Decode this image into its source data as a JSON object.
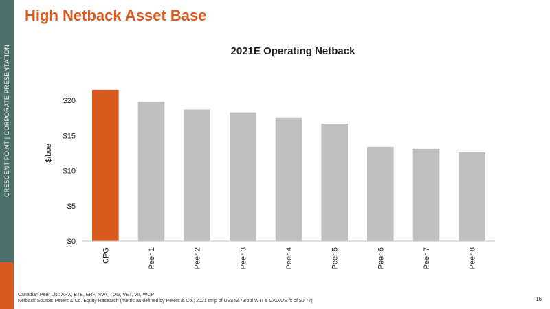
{
  "slide": {
    "title": "High Netback Asset Base",
    "sidebar_text": "CRESCENT POINT   |   CORPORATE PRESENTATION",
    "page_number": "16",
    "footnotes": [
      "Canadian Peer List: ARX, BTE, ERF, NVA, TOG, VET, VII, WCP",
      "Netback Source: Peters & Co. Equity Research (metric as defined by Peters & Co.; 2021 strip of US$43.73/bbl WTI & CAD/US fx of $0.77)"
    ],
    "colors": {
      "sidebar": "#4b6f69",
      "accent": "#d85a1f"
    }
  },
  "chart_data": {
    "type": "bar",
    "title": "2021E Operating Netback",
    "xlabel": "",
    "ylabel": "$/boe",
    "categories": [
      "CPG",
      "Peer 1",
      "Peer 2",
      "Peer 3",
      "Peer 4",
      "Peer 5",
      "Peer 6",
      "Peer 7",
      "Peer 8"
    ],
    "values": [
      21.5,
      19.8,
      18.7,
      18.3,
      17.5,
      16.7,
      13.4,
      13.1,
      12.6
    ],
    "colors": [
      "#d85a1f",
      "#c0c0c0",
      "#c0c0c0",
      "#c0c0c0",
      "#c0c0c0",
      "#c0c0c0",
      "#c0c0c0",
      "#c0c0c0",
      "#c0c0c0"
    ],
    "ylim": [
      0,
      25
    ],
    "yticks": [
      0,
      5,
      10,
      15,
      20
    ],
    "ytick_labels": [
      "$0",
      "$5",
      "$10",
      "$15",
      "$20"
    ],
    "grid": false,
    "legend": "none"
  }
}
